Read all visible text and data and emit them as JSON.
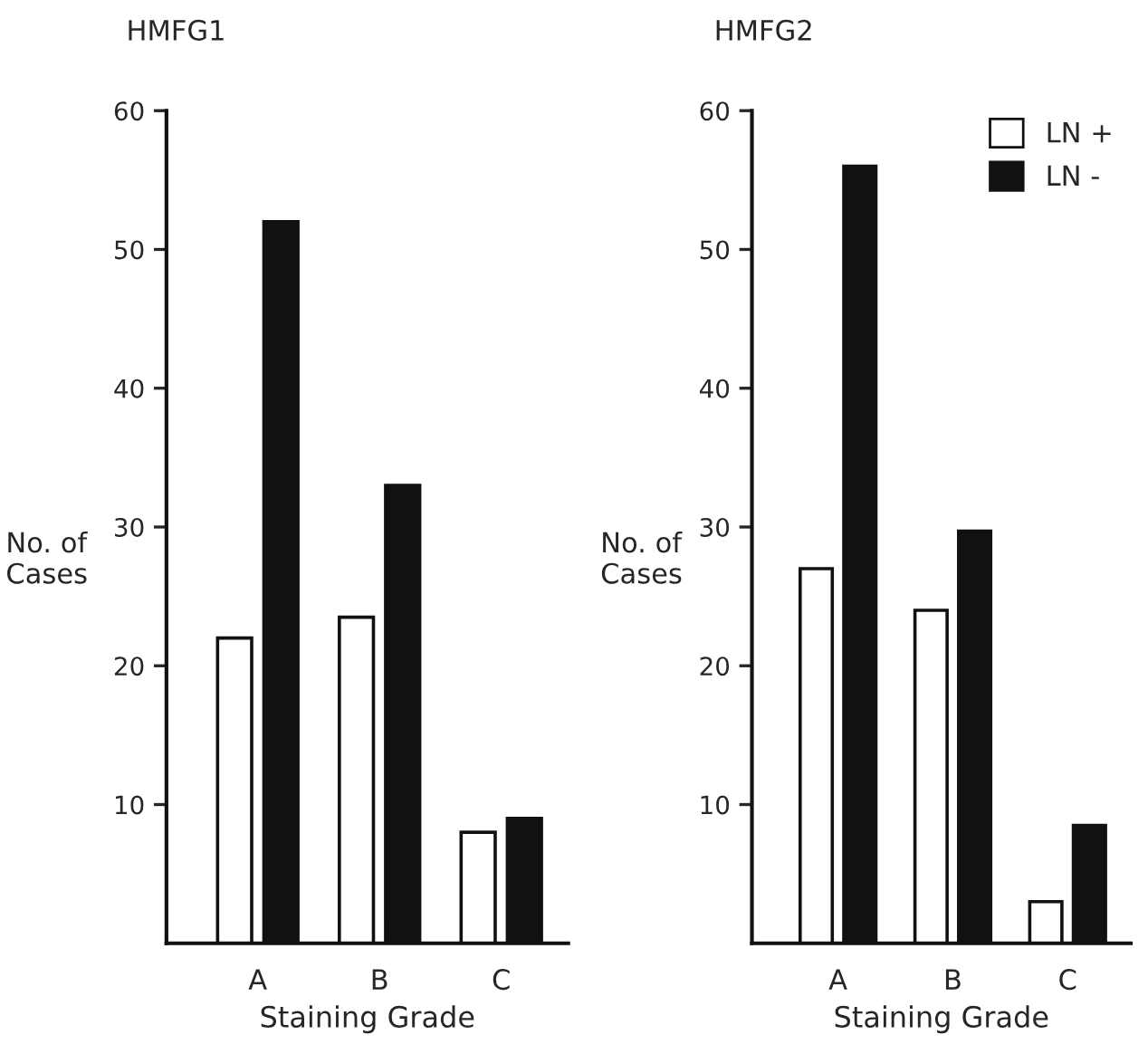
{
  "chart_data": [
    {
      "type": "bar",
      "title": "HMFG1",
      "xlabel": "Staining Grade",
      "ylabel": "No. of\nCases",
      "categories": [
        "A",
        "B",
        "C"
      ],
      "series": [
        {
          "color": "#ffffff",
          "values": [
            22,
            23.5,
            8
          ]
        },
        {
          "color": "#111111",
          "values": [
            52,
            33,
            9
          ]
        }
      ],
      "ylim": [
        0,
        60
      ],
      "yticks": [
        10,
        20,
        30,
        40,
        50,
        60
      ],
      "grid": false,
      "legend": false
    },
    {
      "type": "bar",
      "title": "HMFG2",
      "xlabel": "Staining Grade",
      "ylabel": "No. of\nCases",
      "categories": [
        "A",
        "B",
        "C"
      ],
      "series": [
        {
          "name": "LN +",
          "color": "#ffffff",
          "values": [
            27,
            24,
            3
          ]
        },
        {
          "name": "LN -",
          "color": "#111111",
          "values": [
            56,
            29.7,
            8.5
          ]
        }
      ],
      "ylim": [
        0,
        60
      ],
      "yticks": [
        10,
        20,
        30,
        40,
        50,
        60
      ],
      "grid": false,
      "legend": "top right"
    }
  ]
}
